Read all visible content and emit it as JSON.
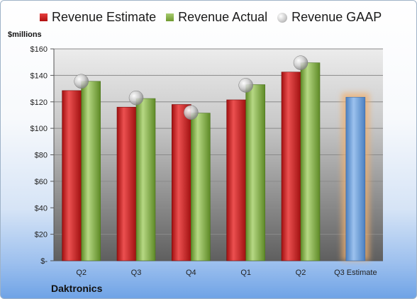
{
  "legend": {
    "estimate": "Revenue Estimate",
    "actual": "Revenue Actual",
    "gaap": "Revenue GAAP"
  },
  "ylabel": "$millions",
  "company": "Daktronics",
  "colors": {
    "estimate": "#c82020",
    "actual": "#86b048",
    "gaap": "#bdbdbd",
    "estimate_bar": "#6a9ed8",
    "glow": "#f0b070"
  },
  "chart_data": {
    "type": "bar",
    "title": "",
    "xlabel": "",
    "ylabel": "$millions",
    "ylim": [
      0,
      160
    ],
    "yticks": [
      0,
      20,
      40,
      60,
      80,
      100,
      120,
      140,
      160
    ],
    "ytick_labels": [
      "$-",
      "$20",
      "$40",
      "$60",
      "$80",
      "$100",
      "$120",
      "$140",
      "$160"
    ],
    "categories": [
      "Q2",
      "Q3",
      "Q4",
      "Q1",
      "Q2",
      "Q3 Estimate"
    ],
    "grid": true,
    "legend_position": "top",
    "series": [
      {
        "name": "Revenue Estimate",
        "type": "bar",
        "values": [
          128.5,
          116,
          118,
          121.5,
          142.5,
          null
        ]
      },
      {
        "name": "Revenue Actual",
        "type": "bar",
        "values": [
          135.5,
          122.5,
          111.5,
          133,
          149.5,
          null
        ]
      },
      {
        "name": "Revenue GAAP",
        "type": "scatter",
        "values": [
          135.5,
          123,
          112,
          132.5,
          149.5,
          null
        ]
      },
      {
        "name": "",
        "type": "bar",
        "values": [
          null,
          null,
          null,
          null,
          null,
          123.5
        ]
      }
    ]
  }
}
